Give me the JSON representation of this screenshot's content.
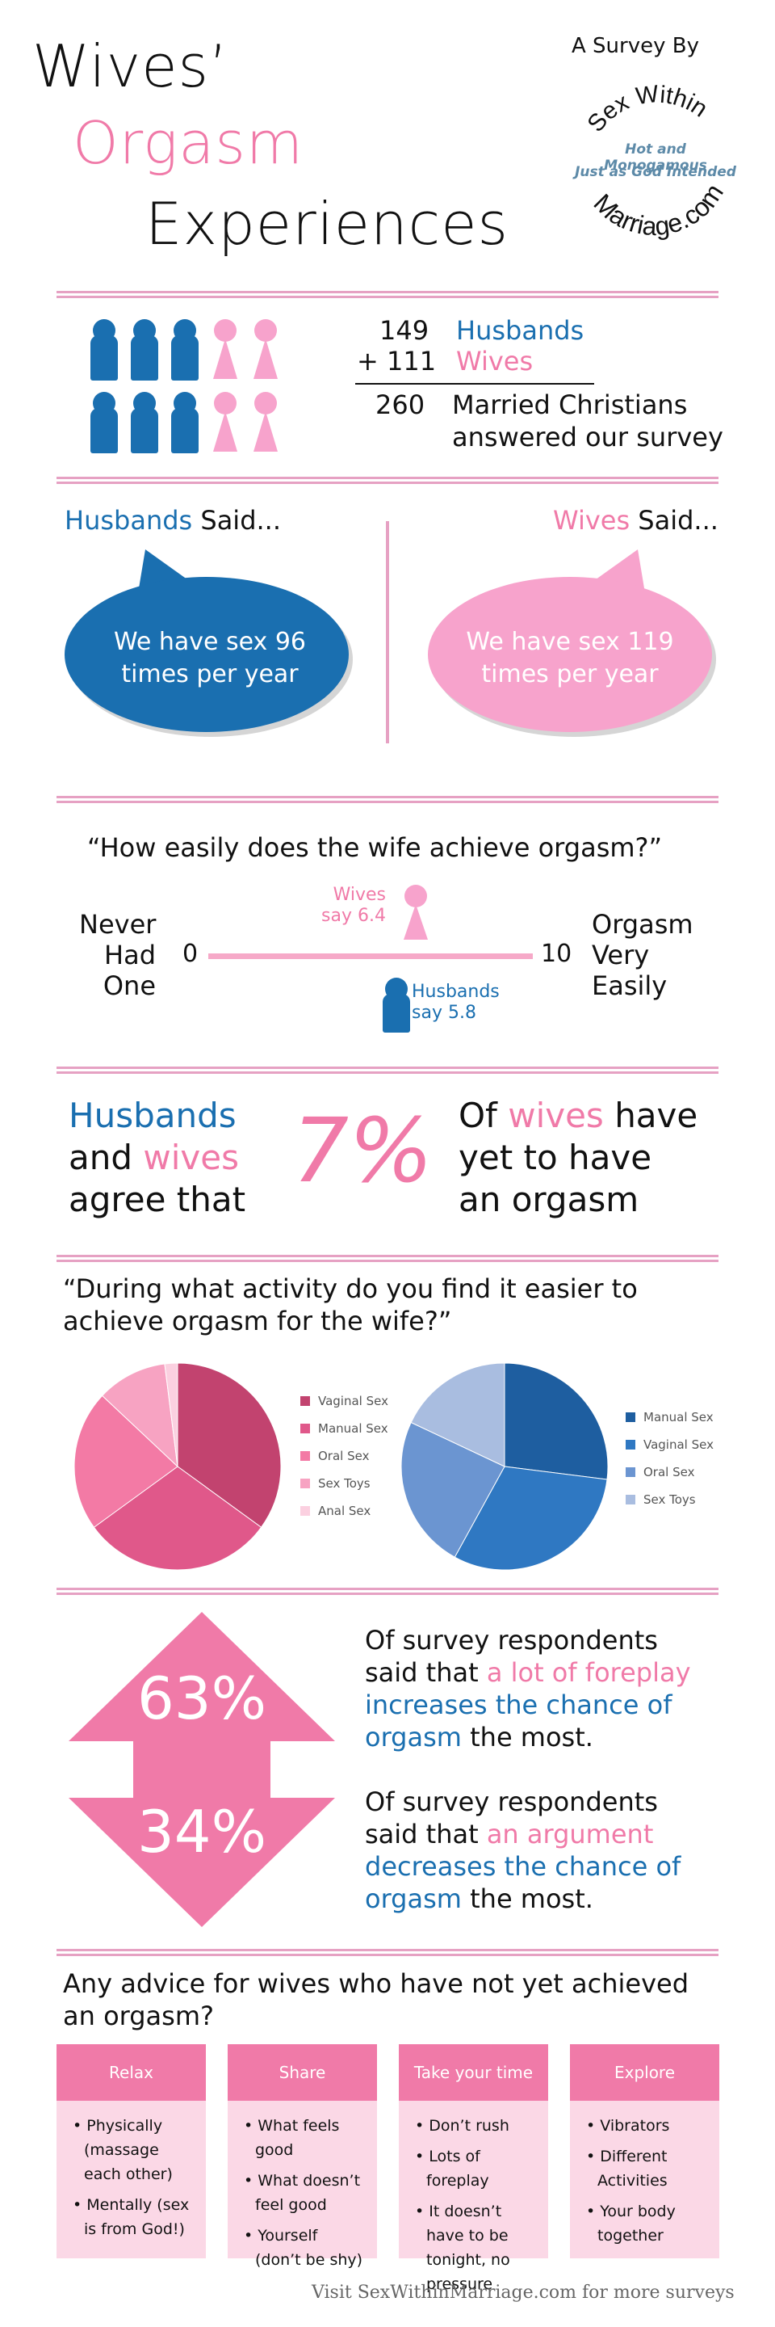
{
  "header": {
    "title_line1": "Wives’",
    "title_line2": "Orgasm",
    "title_line3": "Experiences",
    "survey_by": "A Survey By",
    "logo_top": "Sex Within",
    "logo_tagline1": "Hot and Monogamous",
    "logo_tagline2": "Just as God Intended",
    "logo_bottom": "Marriage.com"
  },
  "respondents": {
    "husbands_count": "149",
    "husbands_label": "Husbands",
    "wives_count": "+ 111",
    "wives_label": "Wives",
    "total_count": "260",
    "total_label_line1": "Married Christians",
    "total_label_line2": "answered our survey"
  },
  "frequency": {
    "husbands_heading": "Husbands",
    "husbands_said": "Said...",
    "husbands_bubble_line1": "We have sex 96",
    "husbands_bubble_line2": "times per year",
    "wives_heading": "Wives",
    "wives_said": "Said...",
    "wives_bubble_line1": "We have sex 119",
    "wives_bubble_line2": "times per year"
  },
  "ease": {
    "question": "“How easily does the wife achieve orgasm?”",
    "left_label_line1": "Never",
    "left_label_line2": "Had",
    "left_label_line3": "One",
    "scale_min": "0",
    "scale_max": "10",
    "right_label_line1": "Orgasm",
    "right_label_line2": "Very",
    "right_label_line3": "Easily",
    "wives_label_line1": "Wives",
    "wives_label_line2": "say 6.4",
    "husbands_label_line1": "Husbands",
    "husbands_label_line2": "say 5.8",
    "wives_value": 6.4,
    "husbands_value": 5.8
  },
  "agree": {
    "left_line1": "Husbands",
    "left_line2_a": "and",
    "left_line2_b": "wives",
    "left_line3": "agree that",
    "percent": "7%",
    "right_line1_a": "Of",
    "right_line1_b": "wives",
    "right_line1_c": "have",
    "right_line2": "yet to have",
    "right_line3": "an orgasm"
  },
  "activity": {
    "question_line1": "“During what activity do you find it easier to",
    "question_line2": "achieve orgasm for the wife?”"
  },
  "chart_data": [
    {
      "type": "pie",
      "categories": [
        "Vaginal Sex",
        "Manual Sex",
        "Oral Sex",
        "Sex Toys",
        "Anal Sex"
      ],
      "values": [
        35,
        30,
        22,
        11,
        2
      ],
      "colors": [
        "#c2436f",
        "#e0588a",
        "#f37aa5",
        "#f7a3c2",
        "#fbd0e0"
      ]
    },
    {
      "type": "pie",
      "categories": [
        "Manual Sex",
        "Vaginal Sex",
        "Oral Sex",
        "Sex Toys"
      ],
      "values": [
        27,
        31,
        24,
        18
      ],
      "colors": [
        "#1e5ea0",
        "#2f78c2",
        "#6b95d1",
        "#a9bde0"
      ]
    }
  ],
  "foreplay": {
    "pct_top": "63%",
    "pct_bottom": "34%",
    "top_line1": "Of survey respondents",
    "top_line2_a": "said that",
    "top_line2_b": "a lot of foreplay",
    "top_line3": "increases the chance of",
    "top_line4_a": "orgasm",
    "top_line4_b": "the most.",
    "bottom_line1": "Of survey respondents",
    "bottom_line2_a": "said that",
    "bottom_line2_b": "an argument",
    "bottom_line3": "decreases the chance of",
    "bottom_line4_a": "orgasm",
    "bottom_line4_b": "the most."
  },
  "advice": {
    "question_line1": "Any advice for wives who have not yet achieved",
    "question_line2": "an orgasm?",
    "cards": [
      {
        "title": "Relax",
        "items": [
          "• Physically (massage each other)",
          "• Mentally (sex is from God!)"
        ]
      },
      {
        "title": "Share",
        "items": [
          "• What feels good",
          "• What doesn’t feel good",
          "• Yourself (don’t be shy)"
        ]
      },
      {
        "title": "Take your time",
        "items": [
          "• Don’t rush",
          "• Lots of foreplay",
          "• It doesn’t have to be tonight, no pressure"
        ]
      },
      {
        "title": "Explore",
        "items": [
          "• Vibrators",
          "• Different Activities",
          "• Your body together"
        ]
      }
    ]
  },
  "footer": {
    "text": "Visit SexWithinMarriage.com for more surveys"
  },
  "colors": {
    "pink": "#f07aa8",
    "blue": "#1a6fb0",
    "divider": "#e6a1c3",
    "light_pink": "#fbd8e6"
  }
}
